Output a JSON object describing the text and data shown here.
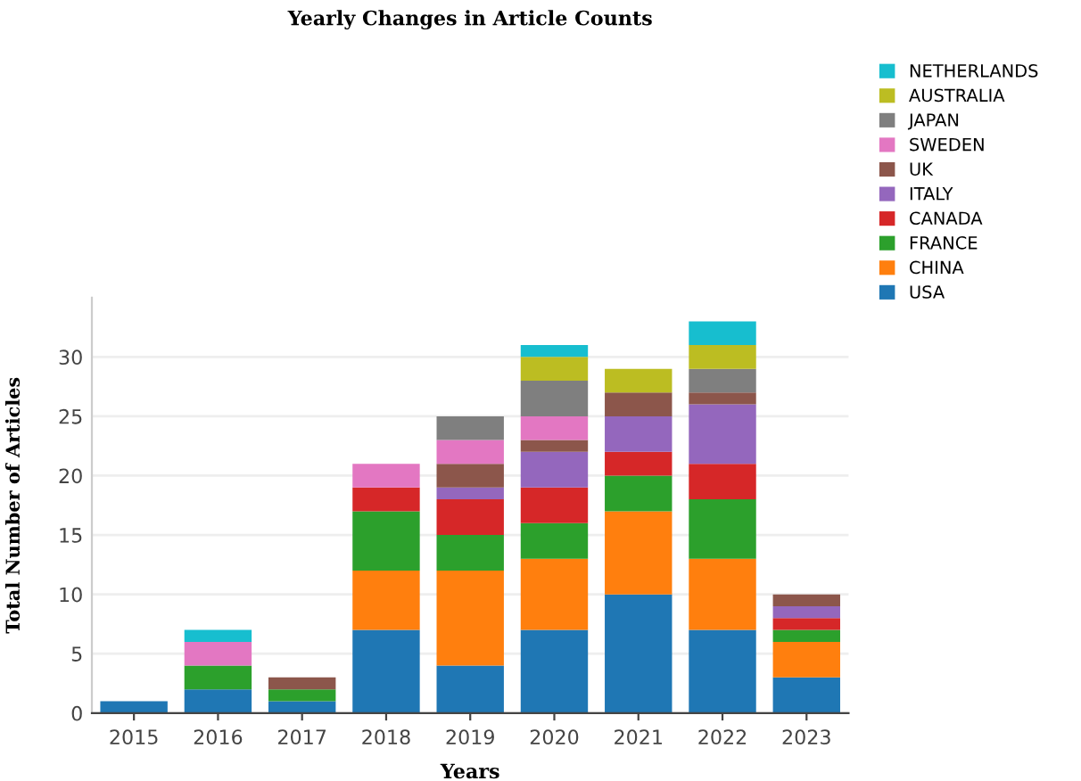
{
  "chart_data": {
    "type": "bar",
    "title": "Yearly Changes in Article Counts",
    "xlabel": "Years",
    "ylabel": "Total Number of Articles",
    "categories": [
      "2015",
      "2016",
      "2017",
      "2018",
      "2019",
      "2020",
      "2021",
      "2022",
      "2023"
    ],
    "stacked": true,
    "ylim": [
      0,
      35
    ],
    "yticks": [
      0,
      5,
      10,
      15,
      20,
      25,
      30
    ],
    "grid": "y",
    "legend": "right",
    "series": [
      {
        "name": "USA",
        "color": "#1f77b4",
        "values": [
          1,
          2,
          1,
          7,
          4,
          7,
          10,
          7,
          3
        ]
      },
      {
        "name": "CHINA",
        "color": "#ff7f0e",
        "values": [
          null,
          null,
          null,
          5,
          8,
          6,
          7,
          6,
          3
        ]
      },
      {
        "name": "FRANCE",
        "color": "#2ca02c",
        "values": [
          null,
          2,
          1,
          5,
          3,
          3,
          3,
          5,
          1
        ]
      },
      {
        "name": "CANADA",
        "color": "#d62728",
        "values": [
          null,
          null,
          null,
          2,
          3,
          3,
          2,
          3,
          1
        ]
      },
      {
        "name": "ITALY",
        "color": "#9467bd",
        "values": [
          null,
          null,
          null,
          null,
          1,
          3,
          3,
          5,
          1
        ]
      },
      {
        "name": "UK",
        "color": "#8c564b",
        "values": [
          null,
          null,
          1,
          null,
          2,
          1,
          2,
          1,
          1
        ]
      },
      {
        "name": "SWEDEN",
        "color": "#e377c2",
        "values": [
          null,
          2,
          null,
          2,
          2,
          2,
          null,
          null,
          null
        ]
      },
      {
        "name": "JAPAN",
        "color": "#7f7f7f",
        "values": [
          null,
          null,
          null,
          null,
          2,
          3,
          null,
          2,
          null
        ]
      },
      {
        "name": "AUSTRALIA",
        "color": "#bcbd22",
        "values": [
          null,
          null,
          null,
          null,
          null,
          2,
          2,
          2,
          null
        ]
      },
      {
        "name": "NETHERLANDS",
        "color": "#17becf",
        "values": [
          null,
          1,
          null,
          null,
          null,
          1,
          null,
          2,
          null
        ]
      }
    ]
  }
}
